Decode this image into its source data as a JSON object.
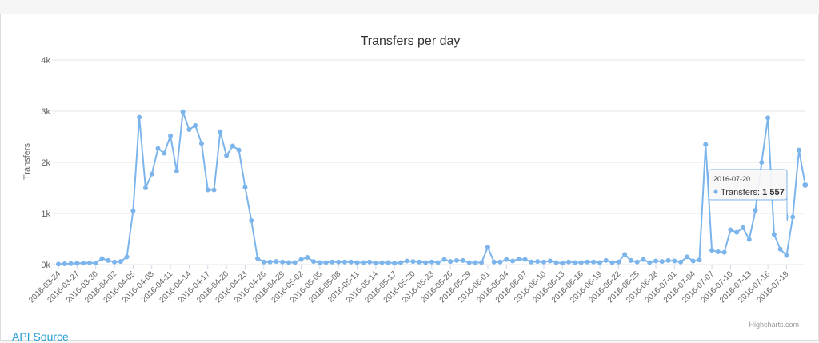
{
  "chart_data": {
    "type": "line",
    "title": "Transfers per day",
    "ylabel": "Transfers",
    "ylim": [
      0,
      4000
    ],
    "yticks": [
      {
        "value": 0,
        "label": "0k"
      },
      {
        "value": 1000,
        "label": "1k"
      },
      {
        "value": 2000,
        "label": "2k"
      },
      {
        "value": 3000,
        "label": "3k"
      },
      {
        "value": 4000,
        "label": "4k"
      }
    ],
    "xtick_labels": [
      "2016-03-24",
      "2016-03-27",
      "2016-03-30",
      "2016-04-02",
      "2016-04-05",
      "2016-04-08",
      "2016-04-11",
      "2016-04-14",
      "2016-04-17",
      "2016-04-20",
      "2016-04-23",
      "2016-04-26",
      "2016-04-29",
      "2016-05-02",
      "2016-05-05",
      "2016-05-08",
      "2016-05-11",
      "2016-05-14",
      "2016-05-17",
      "2016-05-20",
      "2016-05-23",
      "2016-05-26",
      "2016-05-29",
      "2016-06-01",
      "2016-06-04",
      "2016-06-07",
      "2016-06-10",
      "2016-06-13",
      "2016-06-16",
      "2016-06-19",
      "2016-06-22",
      "2016-06-25",
      "2016-06-28",
      "2016-07-01",
      "2016-07-04",
      "2016-07-07",
      "2016-07-10",
      "2016-07-13",
      "2016-07-16",
      "2016-07-19"
    ],
    "x_start": "2016-03-24",
    "x_end": "2016-07-21",
    "grid": true,
    "series_color": "#7cb5ec",
    "series": [
      {
        "values": [
          10,
          15,
          20,
          25,
          30,
          35,
          30,
          120,
          80,
          50,
          60,
          150,
          1050,
          2880,
          1500,
          1770,
          2270,
          2180,
          2520,
          1830,
          2990,
          2640,
          2720,
          2370,
          1460,
          1460,
          2600,
          2130,
          2320,
          2240,
          1510,
          860,
          120,
          50,
          50,
          60,
          50,
          40,
          40,
          100,
          140,
          60,
          40,
          40,
          50,
          50,
          50,
          50,
          40,
          40,
          50,
          30,
          40,
          40,
          30,
          40,
          70,
          60,
          50,
          40,
          50,
          40,
          100,
          60,
          80,
          80,
          40,
          40,
          40,
          340,
          50,
          50,
          100,
          70,
          110,
          100,
          50,
          60,
          50,
          70,
          40,
          30,
          50,
          40,
          40,
          50,
          50,
          40,
          80,
          40,
          50,
          200,
          80,
          50,
          100,
          40,
          70,
          60,
          80,
          70,
          50,
          150,
          70,
          90,
          2350,
          280,
          250,
          240,
          680,
          630,
          720,
          490,
          1060,
          2000,
          2870,
          590,
          300,
          180,
          930,
          2240,
          1557
        ]
      }
    ],
    "tooltip": {
      "date": "2016-07-20",
      "label": "Transfers: ",
      "value": "1 557"
    }
  },
  "links": {
    "api_source": "API Source"
  },
  "credits": "Highcharts.com"
}
